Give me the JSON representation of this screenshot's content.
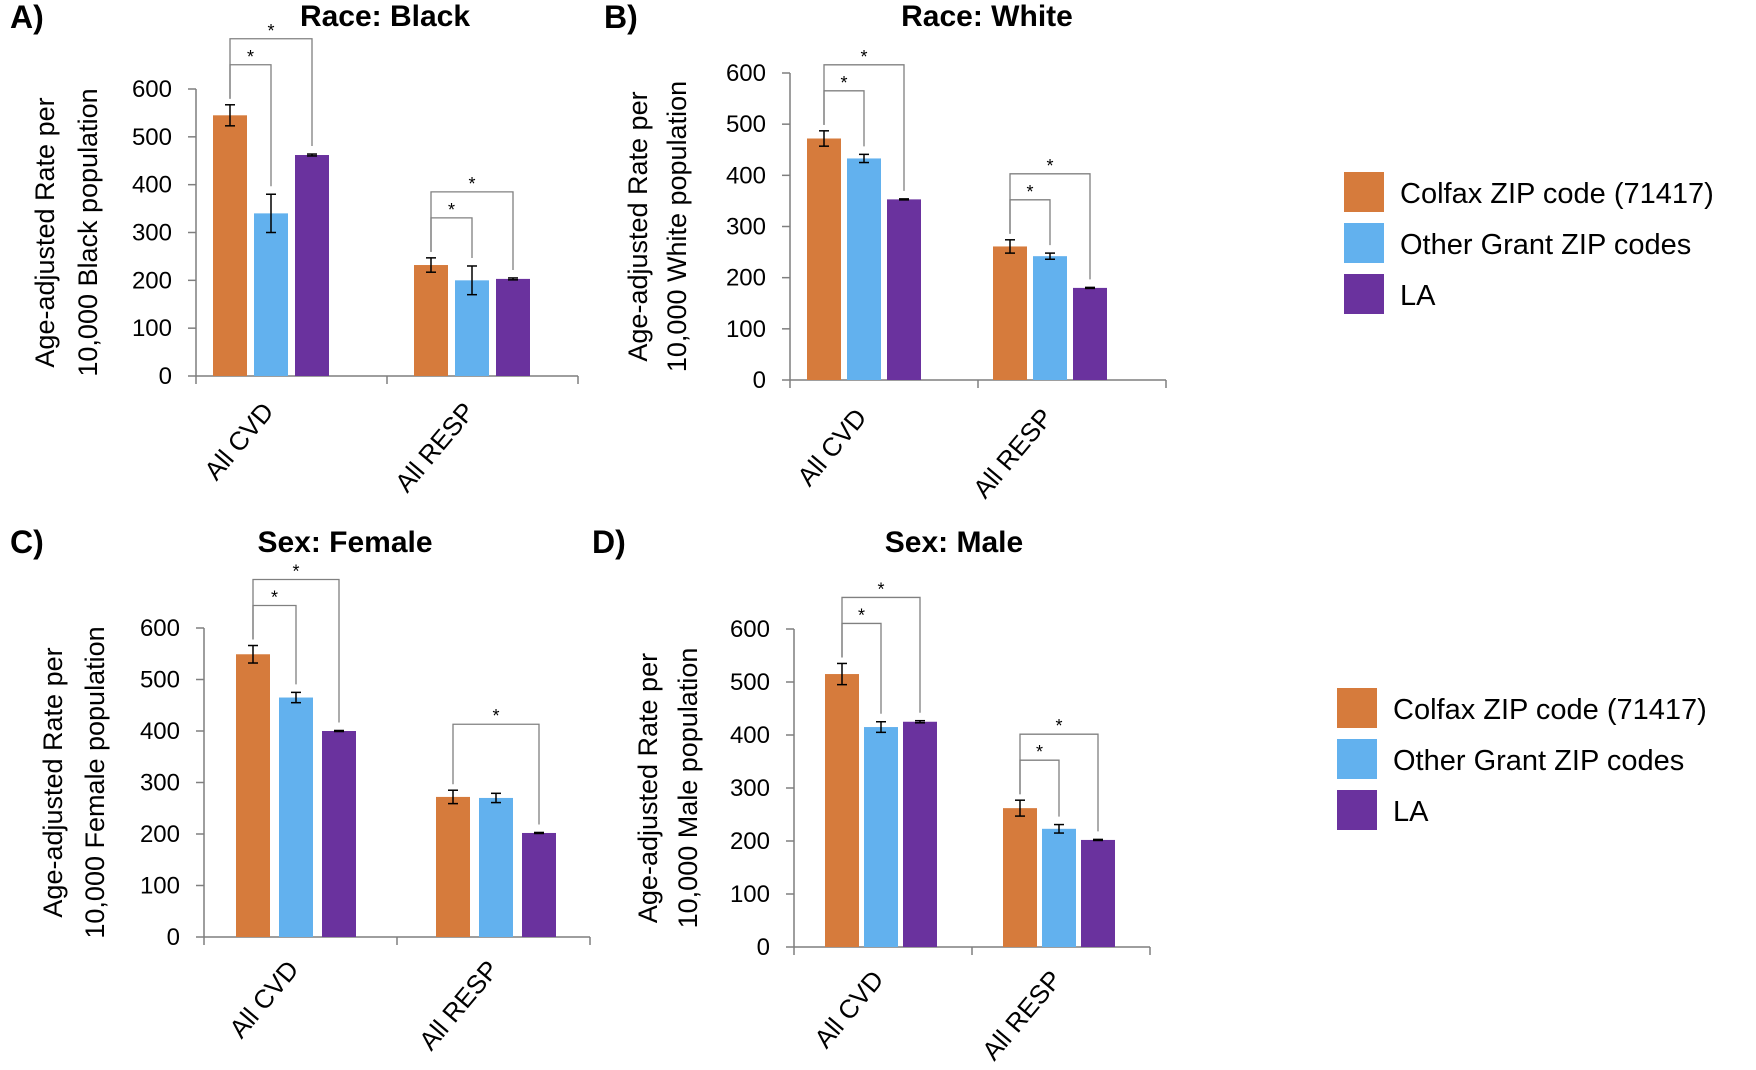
{
  "colors": {
    "Colfax ZIP code (71417)": "#D67B3C",
    "Other Grant ZIP codes": "#62B1EE",
    "LA": "#6A329E",
    "axis": "#7f7f7f",
    "bracket": "#808080",
    "errorbar": "#000000"
  },
  "legend": {
    "entries": [
      "Colfax ZIP code (71417)",
      "Other Grant ZIP codes",
      "LA"
    ]
  },
  "chart_data": [
    {
      "type": "bar",
      "panel": "A)",
      "title": "Race: Black",
      "ylabel": [
        "Age-adjusted Rate per",
        "10,000 Black population"
      ],
      "ylim": [
        0,
        600
      ],
      "yticks": [
        "0",
        "100",
        "200",
        "300",
        "400",
        "500",
        "600"
      ],
      "categories": [
        "All CVD",
        "All RESP"
      ],
      "series": [
        {
          "name": "Colfax ZIP code (71417)",
          "values": [
            545,
            232
          ],
          "errors": [
            22,
            15
          ]
        },
        {
          "name": "Other Grant ZIP codes",
          "values": [
            340,
            200
          ],
          "errors": [
            40,
            30
          ]
        },
        {
          "name": "LA",
          "values": [
            462,
            203
          ],
          "errors": [
            2,
            2
          ]
        }
      ],
      "significance": [
        {
          "category": 0,
          "from": 0,
          "to": 1,
          "label": "*"
        },
        {
          "category": 0,
          "from": 0,
          "to": 2,
          "label": "*"
        },
        {
          "category": 1,
          "from": 0,
          "to": 1,
          "label": "*"
        },
        {
          "category": 1,
          "from": 0,
          "to": 2,
          "label": "*"
        }
      ]
    },
    {
      "type": "bar",
      "panel": "B)",
      "title": "Race: White",
      "ylabel": [
        "Age-adjusted Rate per",
        "10,000 White population"
      ],
      "ylim": [
        0,
        600
      ],
      "yticks": [
        "0",
        "100",
        "200",
        "300",
        "400",
        "500",
        "600"
      ],
      "categories": [
        "All CVD",
        "All RESP"
      ],
      "series": [
        {
          "name": "Colfax ZIP code (71417)",
          "values": [
            472,
            261
          ],
          "errors": [
            15,
            13
          ]
        },
        {
          "name": "Other Grant ZIP codes",
          "values": [
            433,
            242
          ],
          "errors": [
            8,
            6
          ]
        },
        {
          "name": "LA",
          "values": [
            353,
            180
          ],
          "errors": [
            1,
            1
          ]
        }
      ],
      "significance": [
        {
          "category": 0,
          "from": 0,
          "to": 1,
          "label": "*"
        },
        {
          "category": 0,
          "from": 0,
          "to": 2,
          "label": "*"
        },
        {
          "category": 1,
          "from": 0,
          "to": 1,
          "label": "*"
        },
        {
          "category": 1,
          "from": 0,
          "to": 2,
          "label": "*"
        }
      ]
    },
    {
      "type": "bar",
      "panel": "C)",
      "title": "Sex: Female",
      "ylabel": [
        "Age-adjusted Rate per",
        "10,000 Female population"
      ],
      "ylim": [
        0,
        600
      ],
      "yticks": [
        "0",
        "100",
        "200",
        "300",
        "400",
        "500",
        "600"
      ],
      "categories": [
        "All CVD",
        "All RESP"
      ],
      "series": [
        {
          "name": "Colfax ZIP code (71417)",
          "values": [
            549,
            272
          ],
          "errors": [
            17,
            13
          ]
        },
        {
          "name": "Other Grant ZIP codes",
          "values": [
            465,
            270
          ],
          "errors": [
            10,
            9
          ]
        },
        {
          "name": "LA",
          "values": [
            400,
            202
          ],
          "errors": [
            1,
            1
          ]
        }
      ],
      "significance": [
        {
          "category": 0,
          "from": 0,
          "to": 1,
          "label": "*"
        },
        {
          "category": 0,
          "from": 0,
          "to": 2,
          "label": "*"
        },
        {
          "category": 1,
          "from": 0,
          "to": 2,
          "label": "*"
        }
      ]
    },
    {
      "type": "bar",
      "panel": "D)",
      "title": "Sex: Male",
      "ylabel": [
        "Age-adjusted Rate per",
        "10,000 Male population"
      ],
      "ylim": [
        0,
        600
      ],
      "yticks": [
        "0",
        "100",
        "200",
        "300",
        "400",
        "500",
        "600"
      ],
      "categories": [
        "All CVD",
        "All RESP"
      ],
      "series": [
        {
          "name": "Colfax ZIP code (71417)",
          "values": [
            515,
            262
          ],
          "errors": [
            20,
            15
          ]
        },
        {
          "name": "Other Grant ZIP codes",
          "values": [
            415,
            223
          ],
          "errors": [
            10,
            8
          ]
        },
        {
          "name": "LA",
          "values": [
            425,
            202
          ],
          "errors": [
            2,
            1
          ]
        }
      ],
      "significance": [
        {
          "category": 0,
          "from": 0,
          "to": 1,
          "label": "*"
        },
        {
          "category": 0,
          "from": 0,
          "to": 2,
          "label": "*"
        },
        {
          "category": 1,
          "from": 0,
          "to": 1,
          "label": "*"
        },
        {
          "category": 1,
          "from": 0,
          "to": 2,
          "label": "*"
        }
      ]
    }
  ]
}
